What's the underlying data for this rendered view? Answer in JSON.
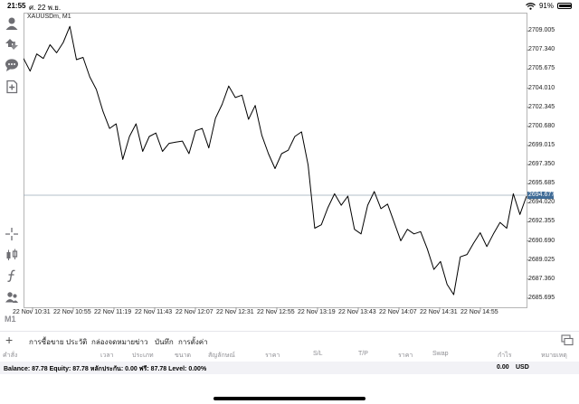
{
  "status_bar": {
    "time": "21:55",
    "date": "ศ. 22 พ.ย.",
    "battery": "91%",
    "battery_level": 0.91
  },
  "chart": {
    "symbol": "XAUUSDm, M1",
    "current_price": "2694.677",
    "price_labels": [
      "2709.005",
      "2707.340",
      "2705.675",
      "2704.010",
      "2702.345",
      "2700.680",
      "2699.015",
      "2697.350",
      "2695.685",
      "2694.020",
      "2692.355",
      "2690.690",
      "2689.025",
      "2687.360",
      "2685.695"
    ],
    "time_labels": [
      "22 Nov 10:31",
      "22 Nov 10:55",
      "22 Nov 11:19",
      "22 Nov 11:43",
      "22 Nov 12:07",
      "22 Nov 12:31",
      "22 Nov 12:55",
      "22 Nov 13:19",
      "22 Nov 13:43",
      "22 Nov 14:07",
      "22 Nov 14:31",
      "22 Nov 14:55"
    ],
    "line_color": "#000000",
    "current_price_color": "#3f6b96"
  },
  "chart_data": {
    "type": "line",
    "ylim": [
      2684.9,
      2710.6
    ],
    "x": [
      "10:31",
      "10:34",
      "10:38",
      "10:41",
      "10:45",
      "10:48",
      "10:52",
      "10:55",
      "10:59",
      "11:02",
      "11:06",
      "11:09",
      "11:13",
      "11:16",
      "11:20",
      "11:23",
      "11:27",
      "11:30",
      "11:34",
      "11:37",
      "11:41",
      "11:44",
      "11:48",
      "11:51",
      "11:55",
      "11:58",
      "12:02",
      "12:05",
      "12:09",
      "12:12",
      "12:16",
      "12:19",
      "12:23",
      "12:26",
      "12:30",
      "12:33",
      "12:37",
      "12:40",
      "12:44",
      "12:47",
      "12:51",
      "12:54",
      "12:58",
      "13:01",
      "13:05",
      "13:08",
      "13:12",
      "13:15",
      "13:19",
      "13:22",
      "13:26",
      "13:29",
      "13:33",
      "13:36",
      "13:40",
      "13:43",
      "13:47",
      "13:50",
      "13:54",
      "13:57",
      "14:01",
      "14:04",
      "14:08",
      "14:11",
      "14:15",
      "14:18",
      "14:22",
      "14:25",
      "14:29",
      "14:32",
      "14:36",
      "14:39",
      "14:42",
      "14:46",
      "14:49",
      "14:53",
      "14:56"
    ],
    "values": [
      2706.6,
      2705.5,
      2707.0,
      2706.6,
      2707.8,
      2707.1,
      2708.0,
      2709.4,
      2706.5,
      2706.7,
      2705.0,
      2703.9,
      2702.0,
      2700.5,
      2700.9,
      2697.8,
      2699.8,
      2700.9,
      2698.5,
      2699.8,
      2700.1,
      2698.5,
      2699.2,
      2699.3,
      2699.4,
      2698.3,
      2700.3,
      2700.5,
      2698.8,
      2701.4,
      2702.6,
      2704.2,
      2703.2,
      2703.4,
      2701.3,
      2702.5,
      2699.9,
      2698.3,
      2697.0,
      2698.3,
      2698.6,
      2699.8,
      2700.2,
      2697.3,
      2691.8,
      2692.1,
      2693.6,
      2694.8,
      2693.8,
      2694.6,
      2691.7,
      2691.3,
      2693.8,
      2695.0,
      2693.5,
      2693.9,
      2692.3,
      2690.7,
      2691.7,
      2691.3,
      2691.5,
      2690.0,
      2688.2,
      2688.9,
      2686.9,
      2686.0,
      2689.3,
      2689.5,
      2690.5,
      2691.4,
      2690.2,
      2691.3,
      2692.3,
      2691.8,
      2694.8,
      2693.0,
      2694.6
    ],
    "current_value": 2694.677
  },
  "tabs": {
    "items": [
      {
        "label": "การซื้อขาย",
        "active": true
      },
      {
        "label": "ประวัติ",
        "active": false
      },
      {
        "label": "กล่องจดหมาย",
        "active": false
      },
      {
        "label": "ข่าว",
        "active": false
      },
      {
        "label": "บันทึก",
        "active": false
      },
      {
        "label": "การตั้งค่า",
        "active": false
      }
    ]
  },
  "columns": [
    "คำสั่ง",
    "เวลา",
    "ประเภท",
    "ขนาด",
    "สัญลักษณ์",
    "ราคา",
    "S/L",
    "T/P",
    "ราคา",
    "Swap",
    "กำไร",
    "หมายเหตุ"
  ],
  "balance": {
    "text": "Balance: 87.78 Equity: 87.78 หลักประกัน: 0.00 ฟรี: 87.78 Level: 0.00%",
    "total": "0.00",
    "currency": "USD"
  },
  "sidebar": {
    "timeframe": "M1",
    "tools": [
      "account-icon",
      "trade-icon",
      "chat-icon",
      "new-order-icon",
      "crosshair-icon",
      "indicators-icon",
      "function-icon",
      "objects-icon",
      "community-icon"
    ]
  }
}
